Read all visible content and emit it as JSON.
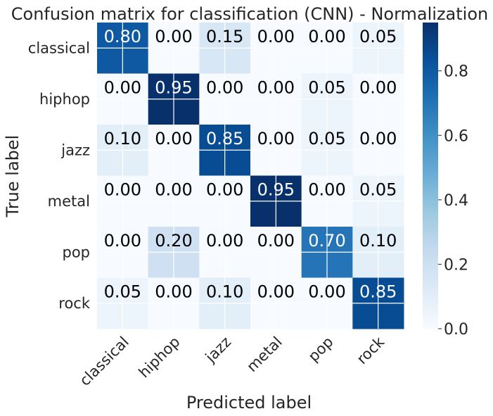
{
  "chart_data": {
    "type": "heatmap",
    "title": "Confusion matrix for classification (CNN) - Normalization",
    "xlabel": "Predicted label",
    "ylabel": "True label",
    "x_categories": [
      "classical",
      "hiphop",
      "jazz",
      "metal",
      "pop",
      "rock"
    ],
    "y_categories": [
      "classical",
      "hiphop",
      "jazz",
      "metal",
      "pop",
      "rock"
    ],
    "values": [
      [
        0.8,
        0.0,
        0.15,
        0.0,
        0.0,
        0.05
      ],
      [
        0.0,
        0.95,
        0.0,
        0.0,
        0.05,
        0.0
      ],
      [
        0.1,
        0.0,
        0.85,
        0.0,
        0.05,
        0.0
      ],
      [
        0.0,
        0.0,
        0.0,
        0.95,
        0.0,
        0.05
      ],
      [
        0.0,
        0.2,
        0.0,
        0.0,
        0.7,
        0.1
      ],
      [
        0.05,
        0.0,
        0.1,
        0.0,
        0.0,
        0.85
      ]
    ],
    "cell_labels": [
      [
        "0.80",
        "0.00",
        "0.15",
        "0.00",
        "0.00",
        "0.05"
      ],
      [
        "0.00",
        "0.95",
        "0.00",
        "0.00",
        "0.05",
        "0.00"
      ],
      [
        "0.10",
        "0.00",
        "0.85",
        "0.00",
        "0.05",
        "0.00"
      ],
      [
        "0.00",
        "0.00",
        "0.00",
        "0.95",
        "0.00",
        "0.05"
      ],
      [
        "0.00",
        "0.20",
        "0.00",
        "0.00",
        "0.70",
        "0.10"
      ],
      [
        "0.05",
        "0.00",
        "0.10",
        "0.00",
        "0.00",
        "0.85"
      ]
    ],
    "colormap": "Blues",
    "colorbar": {
      "range": [
        0.0,
        0.95
      ],
      "ticks": [
        0.0,
        0.2,
        0.4,
        0.6,
        0.8
      ],
      "tick_labels": [
        "0.0",
        "0.2",
        "0.4",
        "0.6",
        "0.8"
      ]
    },
    "grid": true
  }
}
